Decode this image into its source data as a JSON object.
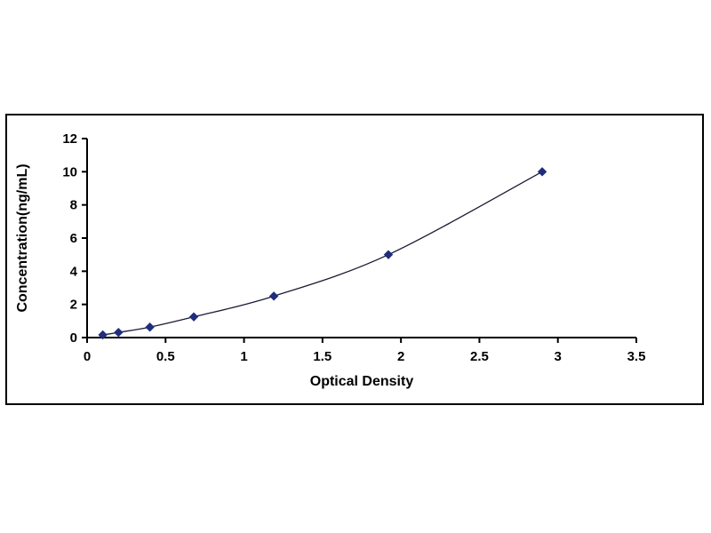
{
  "page": {
    "background_color": "#ffffff"
  },
  "chart_data": {
    "type": "line",
    "title": "",
    "xlabel": "Optical Density",
    "ylabel": "Concentration(ng/mL)",
    "x": [
      0.1,
      0.2,
      0.4,
      0.68,
      1.19,
      1.92,
      2.9
    ],
    "y": [
      0.16,
      0.31,
      0.63,
      1.25,
      2.5,
      5.0,
      10.0
    ],
    "xlim": [
      0,
      3.5
    ],
    "ylim": [
      0,
      12
    ],
    "xticks": [
      0,
      0.5,
      1,
      1.5,
      2,
      2.5,
      3,
      3.5
    ],
    "yticks": [
      0,
      2,
      4,
      6,
      8,
      10,
      12
    ],
    "grid": false,
    "legend_position": "none",
    "marker": "diamond",
    "marker_color": "#1F2D7B",
    "line_color": "#1b1b35",
    "axis_color": "#000000"
  }
}
